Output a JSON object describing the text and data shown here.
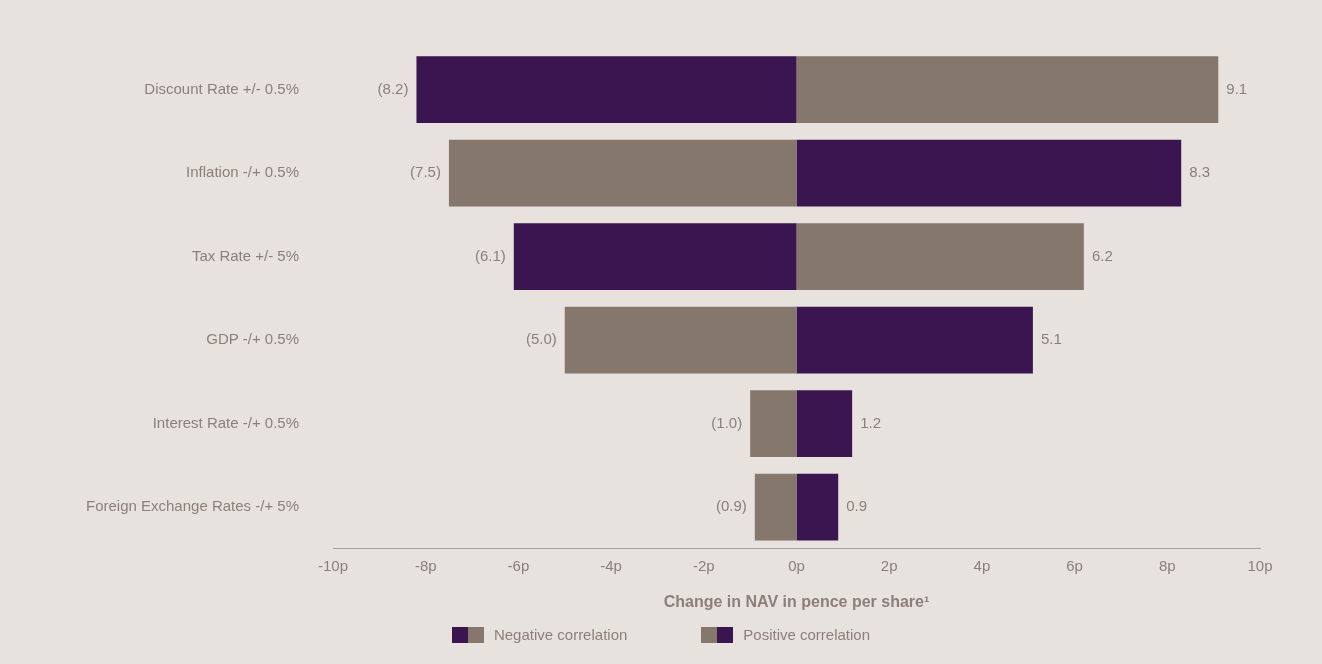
{
  "chart_data": {
    "type": "bar",
    "orientation": "horizontal",
    "stacked": true,
    "categories": [
      "Discount Rate +/- 0.5%",
      "Inflation -/+ 0.5%",
      "Tax Rate +/- 5%",
      "GDP -/+ 0.5%",
      "Interest Rate -/+ 0.5%",
      "Foreign Exchange Rates -/+ 5%"
    ],
    "series": [
      {
        "name": "Negative correlation",
        "color": "#3a1550",
        "values": [
          -8.2,
          null,
          -6.1,
          null,
          null,
          null
        ],
        "value_labels": [
          "(8.2)",
          null,
          "(6.1)",
          null,
          null,
          null
        ]
      },
      {
        "color": "#86776d",
        "values": [
          9.1,
          null,
          6.2,
          null,
          null,
          null
        ],
        "value_labels": [
          "9.1",
          null,
          "6.2",
          null,
          null,
          null
        ]
      },
      {
        "name": "Positive correlation",
        "color": "#86776d",
        "values": [
          null,
          -7.5,
          null,
          -5.0,
          -1.0,
          -0.9
        ],
        "value_labels": [
          null,
          "(7.5)",
          null,
          "(5.0)",
          "(1.0)",
          "(0.9)"
        ]
      },
      {
        "color": "#3a1550",
        "values": [
          null,
          8.3,
          null,
          5.1,
          1.2,
          0.9
        ],
        "value_labels": [
          null,
          "8.3",
          null,
          "5.1",
          "1.2",
          "0.9"
        ]
      }
    ],
    "xlim": [
      -10,
      10
    ],
    "xticks": [
      {
        "value": -10,
        "label": "-10p"
      },
      {
        "value": -8,
        "label": "-8p"
      },
      {
        "value": -6,
        "label": "-6p"
      },
      {
        "value": -4,
        "label": "-4p"
      },
      {
        "value": -2,
        "label": "-2p"
      },
      {
        "value": 0,
        "label": "0p"
      },
      {
        "value": 2,
        "label": "2p"
      },
      {
        "value": 4,
        "label": "4p"
      },
      {
        "value": 6,
        "label": "6p"
      },
      {
        "value": 8,
        "label": "8p"
      },
      {
        "value": 10,
        "label": "10p"
      }
    ],
    "xlabel": "Change in NAV in pence per share¹",
    "legend": "bottom"
  }
}
